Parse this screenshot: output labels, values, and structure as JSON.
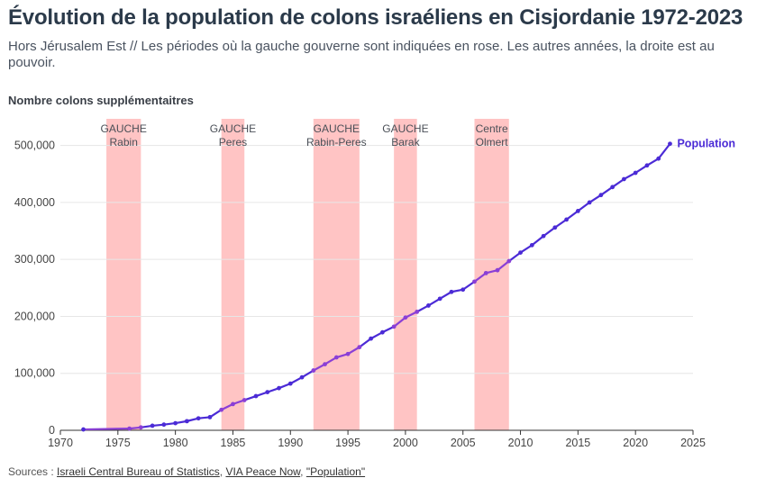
{
  "header": {
    "title": "Évolution de la population de colons israéliens en Cisjordanie 1972-2023",
    "subtitle": "Hors Jérusalem Est // Les périodes où la gauche gouverne sont indiquées en rose. Les autres années, la droite est au pouvoir."
  },
  "footer": {
    "prefix": "Sources : ",
    "sep1": ", ",
    "sep2": ", ",
    "link1": "Israeli Central Bureau of Statistics",
    "link2": "VIA Peace Now",
    "link3": "\"Population\""
  },
  "chart_data": {
    "type": "line",
    "ylabel": "Nombre colons supplémentaitres",
    "xlim": [
      1970,
      2025
    ],
    "ylim": [
      0,
      550000
    ],
    "x_ticks": [
      1970,
      1975,
      1980,
      1985,
      1990,
      1995,
      2000,
      2005,
      2010,
      2015,
      2020,
      2025
    ],
    "y_ticks": [
      0,
      100000,
      200000,
      300000,
      400000,
      500000
    ],
    "y_tick_labels": [
      "0",
      "100,000",
      "200,000",
      "300,000",
      "400,000",
      "500,000"
    ],
    "grid": "horizontal",
    "series": [
      {
        "name": "Population",
        "color": "#4b2bd6",
        "x": [
          1972,
          1976,
          1977,
          1978,
          1979,
          1980,
          1981,
          1982,
          1983,
          1984,
          1985,
          1986,
          1987,
          1988,
          1989,
          1990,
          1991,
          1992,
          1993,
          1994,
          1995,
          1996,
          1997,
          1998,
          1999,
          2000,
          2001,
          2002,
          2003,
          2004,
          2005,
          2006,
          2007,
          2008,
          2009,
          2010,
          2011,
          2012,
          2013,
          2014,
          2015,
          2016,
          2017,
          2018,
          2019,
          2020,
          2021,
          2022,
          2023
        ],
        "values": [
          1500,
          3000,
          5000,
          8000,
          10000,
          12500,
          16000,
          21000,
          23000,
          36000,
          46000,
          53000,
          60000,
          67000,
          74000,
          82000,
          93000,
          105000,
          116000,
          128000,
          134000,
          146000,
          161000,
          172000,
          182000,
          198000,
          208000,
          219000,
          231000,
          243000,
          247000,
          261000,
          276000,
          281000,
          297000,
          312000,
          325000,
          341000,
          356000,
          370000,
          385000,
          400000,
          413000,
          427000,
          441000,
          452000,
          465000,
          477000,
          503000
        ]
      }
    ],
    "periods": [
      {
        "label": "GAUCHE",
        "name": "Rabin",
        "start": 1974,
        "end": 1977
      },
      {
        "label": "GAUCHE",
        "name": "Peres",
        "start": 1984,
        "end": 1986
      },
      {
        "label": "GAUCHE",
        "name": "Rabin-Peres",
        "start": 1992,
        "end": 1996
      },
      {
        "label": "GAUCHE",
        "name": "Barak",
        "start": 1999,
        "end": 2001
      },
      {
        "label": "Centre",
        "name": "Olmert",
        "start": 2006,
        "end": 2009
      }
    ],
    "period_color": "#ffc4c4",
    "highlight_line_color": "#8a3fd6"
  }
}
